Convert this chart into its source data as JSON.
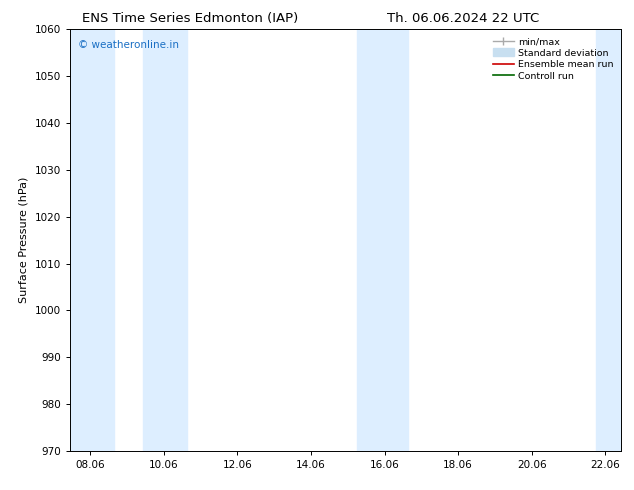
{
  "title_left": "ENS Time Series Edmonton (IAP)",
  "title_right": "Th. 06.06.2024 22 UTC",
  "ylabel": "Surface Pressure (hPa)",
  "ylim": [
    970,
    1060
  ],
  "yticks": [
    970,
    980,
    990,
    1000,
    1010,
    1020,
    1030,
    1040,
    1050,
    1060
  ],
  "xlim_start": 7.5,
  "xlim_end": 22.5,
  "xtick_positions": [
    8.06,
    10.06,
    12.06,
    14.06,
    16.06,
    18.06,
    20.06,
    22.06
  ],
  "xtick_labels": [
    "08.06",
    "10.06",
    "12.06",
    "14.06",
    "16.06",
    "18.06",
    "20.06",
    "22.06"
  ],
  "shaded_bands": [
    {
      "xmin": 7.5,
      "xmax": 8.7
    },
    {
      "xmin": 9.5,
      "xmax": 10.7
    },
    {
      "xmin": 15.3,
      "xmax": 16.7
    },
    {
      "xmin": 21.8,
      "xmax": 22.5
    }
  ],
  "band_color": "#ddeeff",
  "watermark_text": "© weatheronline.in",
  "watermark_color": "#1a6fc4",
  "legend_items": [
    {
      "label": "min/max",
      "color": "#aaaaaa",
      "lw": 1.0
    },
    {
      "label": "Standard deviation",
      "color": "#c8dff0",
      "lw": 5
    },
    {
      "label": "Ensemble mean run",
      "color": "#cc0000",
      "lw": 1.2
    },
    {
      "label": "Controll run",
      "color": "#006600",
      "lw": 1.2
    }
  ],
  "background_color": "#ffffff",
  "title_fontsize": 9.5,
  "axis_label_fontsize": 8,
  "tick_fontsize": 7.5
}
